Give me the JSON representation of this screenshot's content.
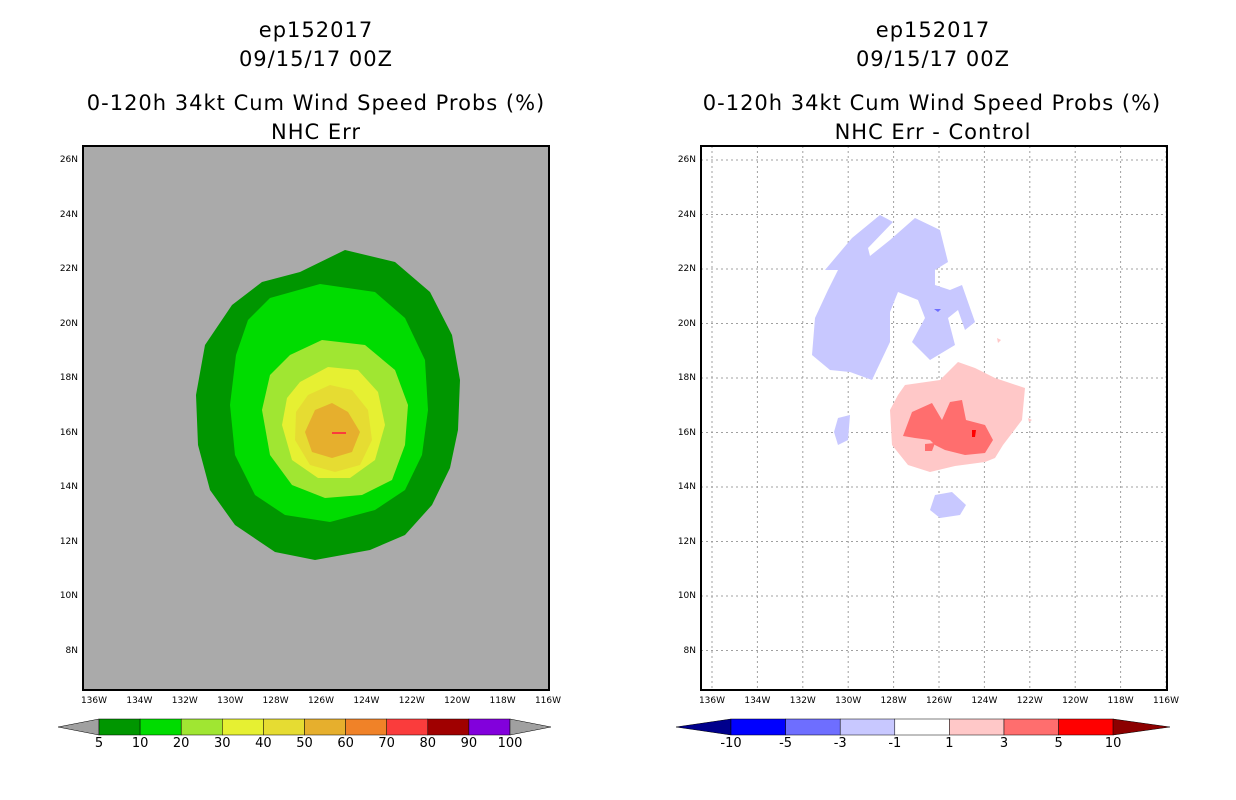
{
  "left_panel": {
    "title_line1": "ep152017",
    "title_line2": "09/15/17 00Z",
    "title_line3": "0-120h 34kt Cum Wind Speed Probs (%)",
    "title_line4": "NHC Err",
    "lat_labels": [
      "26N",
      "24N",
      "22N",
      "20N",
      "18N",
      "16N",
      "14N",
      "12N",
      "10N",
      "8N"
    ],
    "lon_labels": [
      "136W",
      "134W",
      "132W",
      "130W",
      "128W",
      "126W",
      "124W",
      "122W",
      "120W",
      "118W",
      "116W"
    ],
    "colorbar": {
      "labels": [
        "5",
        "10",
        "20",
        "30",
        "40",
        "50",
        "60",
        "70",
        "80",
        "90",
        "100"
      ],
      "colors": [
        "#009600",
        "#00dc00",
        "#a0e632",
        "#e6f032",
        "#e6dc32",
        "#e6af2d",
        "#f08228",
        "#fa3c3c",
        "#a00000",
        "#8200dc"
      ],
      "end_color": "#a0a0a0"
    },
    "fill_colors": {
      "background": "#aaaaaa",
      "p5": "#009600",
      "p10": "#00dc00",
      "p20": "#a0e632",
      "p30": "#e6f032",
      "p40": "#e6dc32",
      "p50": "#e6af2d"
    }
  },
  "right_panel": {
    "title_line1": "ep152017",
    "title_line2": "09/15/17 00Z",
    "title_line3": "0-120h 34kt Cum Wind Speed Probs (%)",
    "title_line4": "NHC Err - Control",
    "lat_labels": [
      "26N",
      "24N",
      "22N",
      "20N",
      "18N",
      "16N",
      "14N",
      "12N",
      "10N",
      "8N"
    ],
    "lon_labels": [
      "136W",
      "134W",
      "132W",
      "130W",
      "128W",
      "126W",
      "124W",
      "122W",
      "120W",
      "118W",
      "116W"
    ],
    "colorbar": {
      "labels": [
        "-10",
        "-5",
        "-3",
        "-1",
        "1",
        "3",
        "5",
        "10"
      ],
      "colors": [
        "#0000ff",
        "#6e6eff",
        "#c8c8ff",
        "#ffffff",
        "#ffc8c8",
        "#ff6e6e",
        "#ff0000"
      ],
      "low_end_color": "#00008c",
      "high_end_color": "#8c0000"
    },
    "fill_colors": {
      "neg_light": "#c8c8ff",
      "pos_light": "#ffc8c8",
      "pos_mid": "#ff6e6e",
      "grid": "#a0a0a0"
    }
  }
}
